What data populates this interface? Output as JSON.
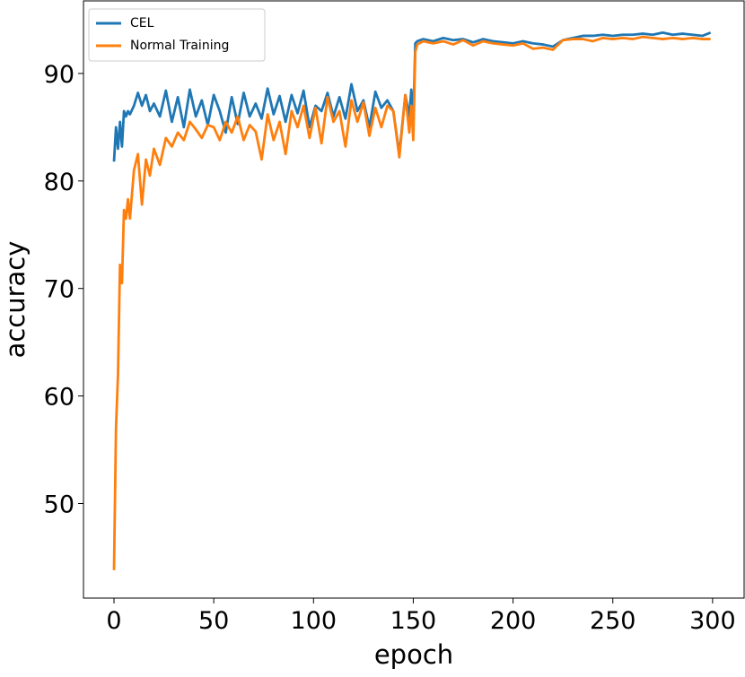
{
  "chart_data": {
    "type": "line",
    "xlabel": "epoch",
    "ylabel": "accuracy",
    "x": [
      0,
      1,
      2,
      3,
      4,
      5,
      6,
      7,
      8,
      10,
      12,
      14,
      16,
      18,
      20,
      23,
      26,
      29,
      32,
      35,
      38,
      41,
      44,
      47,
      50,
      53,
      56,
      59,
      62,
      65,
      68,
      71,
      74,
      77,
      80,
      83,
      86,
      89,
      92,
      95,
      98,
      101,
      104,
      107,
      110,
      113,
      116,
      119,
      122,
      125,
      128,
      131,
      134,
      137,
      140,
      143,
      146,
      148,
      149,
      150,
      151,
      152,
      155,
      160,
      165,
      170,
      175,
      180,
      185,
      190,
      195,
      200,
      205,
      210,
      215,
      220,
      225,
      230,
      235,
      240,
      245,
      250,
      255,
      260,
      265,
      270,
      275,
      280,
      285,
      290,
      295,
      299
    ],
    "series": [
      {
        "name": "CEL",
        "color": "#1f77b4",
        "values": [
          81.8,
          85.0,
          83.0,
          85.5,
          83.2,
          86.5,
          86.0,
          86.5,
          86.2,
          87.0,
          88.2,
          87.0,
          88.0,
          86.5,
          87.2,
          86.0,
          88.4,
          85.5,
          87.8,
          85.0,
          88.5,
          86.0,
          87.5,
          85.2,
          88.0,
          86.5,
          84.5,
          87.8,
          85.3,
          88.2,
          86.0,
          87.2,
          85.8,
          88.6,
          86.2,
          87.9,
          85.5,
          88.0,
          86.3,
          88.4,
          85.0,
          87.0,
          86.5,
          88.2,
          86.0,
          87.8,
          85.8,
          89.0,
          86.5,
          87.5,
          85.0,
          88.3,
          86.8,
          87.5,
          86.5,
          82.5,
          88.0,
          86.0,
          88.5,
          85.5,
          92.8,
          93.0,
          93.2,
          93.0,
          93.3,
          93.1,
          93.2,
          92.9,
          93.2,
          93.0,
          92.9,
          92.8,
          93.0,
          92.8,
          92.7,
          92.5,
          93.1,
          93.3,
          93.5,
          93.5,
          93.6,
          93.5,
          93.6,
          93.6,
          93.7,
          93.6,
          93.8,
          93.6,
          93.7,
          93.6,
          93.5,
          93.8
        ]
      },
      {
        "name": "Normal Training",
        "color": "#ff7f0e",
        "values": [
          43.8,
          57.0,
          62.0,
          72.2,
          70.5,
          77.3,
          76.5,
          78.3,
          76.5,
          81.0,
          82.5,
          77.8,
          82.0,
          80.5,
          83.0,
          81.5,
          84.0,
          83.2,
          84.5,
          83.8,
          85.5,
          84.8,
          84.0,
          85.2,
          85.0,
          83.8,
          85.5,
          84.5,
          86.0,
          83.8,
          85.2,
          84.6,
          82.0,
          86.2,
          83.8,
          85.5,
          82.5,
          86.5,
          85.0,
          87.0,
          84.0,
          86.8,
          83.5,
          87.8,
          85.5,
          86.5,
          83.2,
          87.5,
          85.5,
          87.3,
          84.2,
          86.8,
          85.0,
          87.0,
          86.5,
          82.2,
          88.0,
          84.5,
          87.0,
          83.8,
          92.0,
          92.7,
          93.0,
          92.8,
          93.0,
          92.7,
          93.1,
          92.6,
          93.0,
          92.8,
          92.7,
          92.6,
          92.8,
          92.3,
          92.4,
          92.2,
          93.1,
          93.2,
          93.2,
          93.0,
          93.3,
          93.2,
          93.3,
          93.2,
          93.4,
          93.3,
          93.2,
          93.3,
          93.2,
          93.3,
          93.2,
          93.2
        ]
      }
    ],
    "xlim": [
      -15.3,
      315.8
    ],
    "ylim": [
      41.2,
      96.75
    ],
    "xticks": [
      0,
      50,
      100,
      150,
      200,
      250,
      300
    ],
    "yticks": [
      50,
      60,
      70,
      80,
      90
    ],
    "legend": "upper left"
  }
}
